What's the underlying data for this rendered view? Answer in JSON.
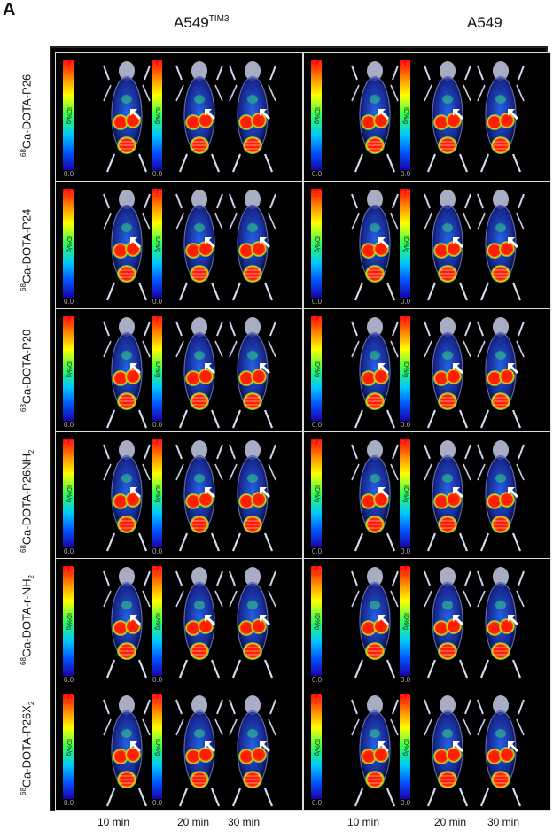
{
  "panel_letter": "A",
  "columns": [
    {
      "main": "A549",
      "sup": "TIM3"
    },
    {
      "main": "A549",
      "sup": ""
    }
  ],
  "rows": [
    {
      "prefix": "68",
      "name": "Ga-DOTA-P26",
      "sub": "",
      "scales": [
        [
          "2.4",
          "0.0"
        ],
        [
          "1.6",
          "0.0"
        ],
        [
          "2.4",
          "0.0"
        ],
        [
          "1.6",
          "0.0"
        ]
      ]
    },
    {
      "prefix": "68",
      "name": "Ga-DOTA-P24",
      "sub": "",
      "scales": [
        [
          "3.6",
          "0.0"
        ],
        [
          "2.0",
          "0.0"
        ],
        [
          "3.6",
          "0.0"
        ],
        [
          "2.0",
          "0.0"
        ]
      ]
    },
    {
      "prefix": "68",
      "name": "Ga-DOTA-P20",
      "sub": "",
      "scales": [
        [
          "2.4",
          "0.0"
        ],
        [
          "2.0",
          "0.0"
        ],
        [
          "2.4",
          "0.0"
        ],
        [
          "2.0",
          "0.0"
        ]
      ]
    },
    {
      "prefix": "68",
      "name": "Ga-DOTA-P26NH",
      "sub": "2",
      "scales": [
        [
          "3.6",
          "0.0"
        ],
        [
          "2.0",
          "0.0"
        ],
        [
          "3.6",
          "0.0"
        ],
        [
          "2.0",
          "0.0"
        ]
      ]
    },
    {
      "prefix": "68",
      "name": "Ga-DOTA-r-NH",
      "sub": "2",
      "scales": [
        [
          "3.6",
          "0.0"
        ],
        [
          "2.0",
          "0.0"
        ],
        [
          "3.6",
          "0.0"
        ],
        [
          "2.0",
          "0.0"
        ]
      ]
    },
    {
      "prefix": "68",
      "name": "Ga-DOTA-P26X",
      "sub": "2",
      "scales": [
        [
          "2.0",
          "0.0"
        ],
        [
          "2.0",
          "0.0"
        ],
        [
          "2.0",
          "0.0"
        ],
        [
          "2.0",
          "0.0"
        ]
      ]
    }
  ],
  "colorbar_unit": "ID%/g",
  "time_labels": [
    "10 min",
    "20 min",
    "30 min",
    "10 min",
    "20 min",
    "30 min"
  ]
}
